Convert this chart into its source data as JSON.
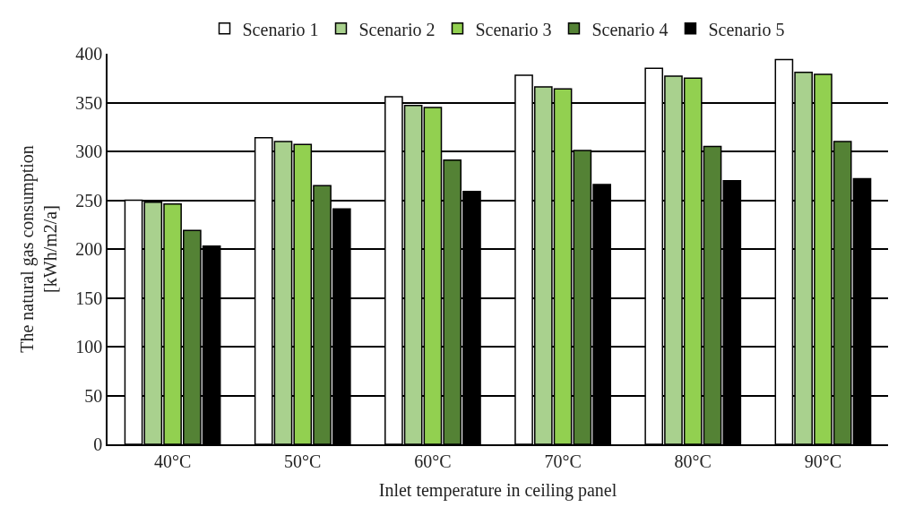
{
  "chart_data": {
    "type": "bar",
    "xlabel": "Inlet temperature in ceiling panel",
    "ylabel": "The natural gas consumption\n[kWh/m2/a]",
    "categories": [
      "40°C",
      "50°C",
      "60°C",
      "70°C",
      "80°C",
      "90°C"
    ],
    "series": [
      {
        "name": "Scenario 1",
        "color": "#ffffff",
        "values": [
          250,
          314,
          356,
          378,
          385,
          394
        ]
      },
      {
        "name": "Scenario 2",
        "color": "#a9d18e",
        "values": [
          248,
          310,
          347,
          366,
          377,
          381
        ]
      },
      {
        "name": "Scenario 3",
        "color": "#92d050",
        "values": [
          246,
          307,
          345,
          364,
          375,
          379
        ]
      },
      {
        "name": "Scenario 4",
        "color": "#548235",
        "values": [
          219,
          265,
          291,
          301,
          305,
          310
        ]
      },
      {
        "name": "Scenario 5",
        "color": "#000000",
        "values": [
          203,
          241,
          259,
          266,
          270,
          272
        ]
      }
    ],
    "ylim": [
      0,
      400
    ],
    "yticks": [
      0,
      50,
      100,
      150,
      200,
      250,
      300,
      350,
      400
    ],
    "grid": "y",
    "legend": "top"
  }
}
